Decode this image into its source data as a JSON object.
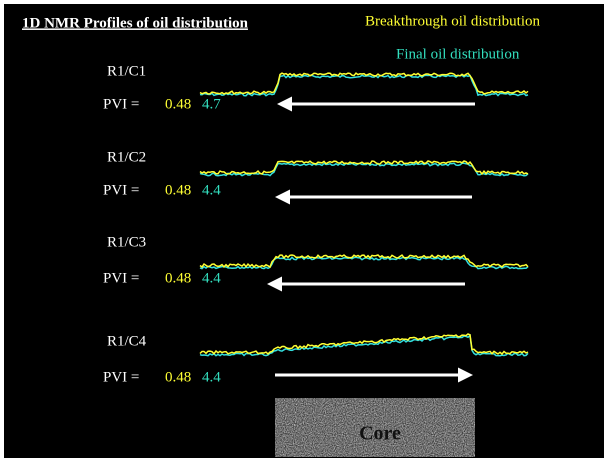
{
  "header": {
    "title": "1D NMR Profiles of oil distribution",
    "legend": {
      "breakthrough": "Breakthrough oil distribution",
      "final": "Final oil distribution"
    }
  },
  "rows": [
    {
      "label": "R1/C1",
      "pvi_label": "PVI =",
      "breakthrough_pvi": 0.48,
      "final_pvi": 4.7
    },
    {
      "label": "R1/C2",
      "pvi_label": "PVI =",
      "breakthrough_pvi": 0.48,
      "final_pvi": 4.4
    },
    {
      "label": "R1/C3",
      "pvi_label": "PVI =",
      "breakthrough_pvi": 0.48,
      "final_pvi": 4.4
    },
    {
      "label": "R1/C4",
      "pvi_label": "PVI =",
      "breakthrough_pvi": 0.48,
      "final_pvi": 4.4
    }
  ],
  "core": {
    "label": "Core"
  }
}
